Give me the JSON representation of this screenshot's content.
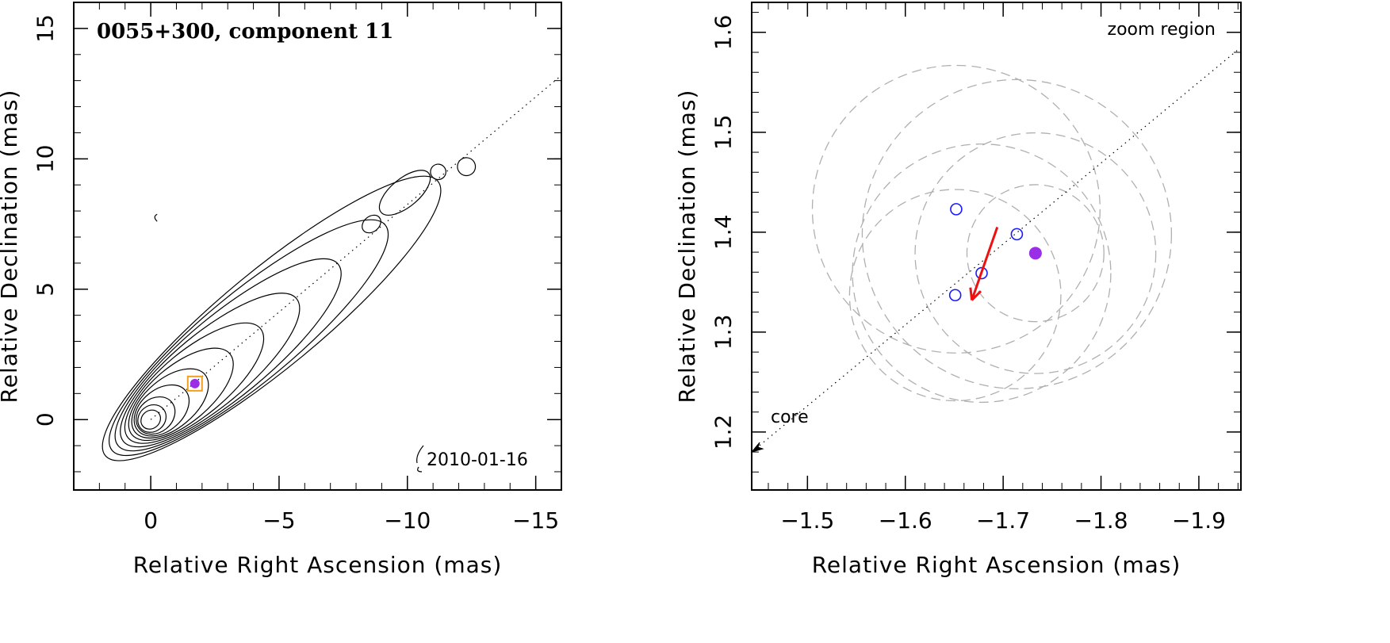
{
  "chart_data": [
    {
      "type": "contour",
      "title": "0055+300, component 11",
      "date_label": "2010-01-16",
      "xlabel": "Relative Right Ascension (mas)",
      "ylabel": "Relative Declination (mas)",
      "xlim": [
        3,
        -16
      ],
      "ylim": [
        -2.7,
        16
      ],
      "xticks": [
        0,
        -5,
        -10,
        -15
      ],
      "xtick_labels": [
        "0",
        "−5",
        "−10",
        "−15"
      ],
      "yticks": [
        0,
        5,
        10,
        15
      ],
      "ytick_labels": [
        "0",
        "5",
        "10",
        "15"
      ],
      "ridge_line": {
        "from": [
          0,
          0
        ],
        "to": [
          -16,
          13.2
        ]
      },
      "component_marker": {
        "x": -1.72,
        "y": 1.38
      },
      "contour_levels": 11,
      "colors": {
        "contour": "#000000",
        "marker_box": "#f0a020",
        "marker_fill": "#9a2ee6"
      }
    },
    {
      "type": "scatter",
      "title": "zoom region",
      "xlabel": "Relative Right Ascension (mas)",
      "ylabel": "Relative Declination (mas)",
      "xlim": [
        -1.443,
        -1.943
      ],
      "ylim": [
        1.142,
        1.63
      ],
      "xticks": [
        -1.5,
        -1.6,
        -1.7,
        -1.8,
        -1.9
      ],
      "xtick_labels": [
        "−1.5",
        "−1.6",
        "−1.7",
        "−1.8",
        "−1.9"
      ],
      "yticks": [
        1.2,
        1.3,
        1.4,
        1.5,
        1.6
      ],
      "ytick_labels": [
        "1.2",
        "1.3",
        "1.4",
        "1.5",
        "1.6"
      ],
      "core_label": "core",
      "open_points": [
        {
          "x": -1.652,
          "y": 1.423
        },
        {
          "x": -1.714,
          "y": 1.398
        },
        {
          "x": -1.678,
          "y": 1.359
        },
        {
          "x": -1.651,
          "y": 1.337
        }
      ],
      "filled_point": {
        "x": -1.733,
        "y": 1.379
      },
      "motion_arrow": {
        "from": [
          -1.694,
          1.405
        ],
        "to": [
          -1.668,
          1.332
        ]
      },
      "ridge_line": {
        "from": [
          -1.443,
          1.18
        ],
        "to": [
          -1.943,
          1.585
        ]
      },
      "uncertainty_circles": [
        {
          "cx": -1.652,
          "cy": 1.423,
          "r": 0.147
        },
        {
          "cx": -1.714,
          "cy": 1.398,
          "r": 0.158
        },
        {
          "cx": -1.678,
          "cy": 1.359,
          "r": 0.132
        },
        {
          "cx": -1.651,
          "cy": 1.337,
          "r": 0.108
        },
        {
          "cx": -1.733,
          "cy": 1.379,
          "r": 0.123
        },
        {
          "cx": -1.733,
          "cy": 1.379,
          "r": 0.07
        }
      ],
      "colors": {
        "open_point": "#1a1aff",
        "filled_point": "#9a2ee6",
        "arrow": "#ee1111",
        "circle": "#b0b0b0"
      }
    }
  ]
}
